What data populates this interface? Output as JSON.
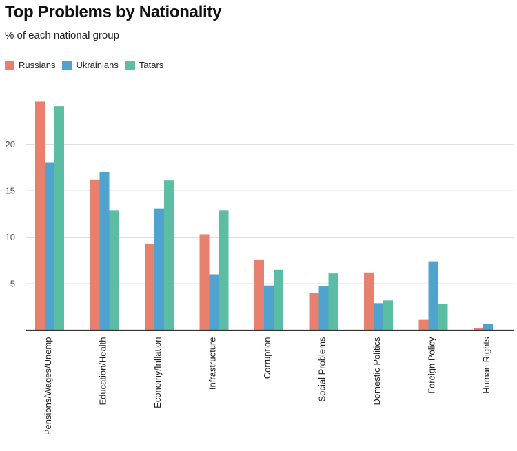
{
  "chart_data": {
    "type": "bar",
    "title": "Top Problems by Nationality",
    "subtitle": "% of each national group",
    "xlabel": "",
    "ylabel": "",
    "ylim": [
      0,
      25
    ],
    "yticks": [
      5,
      10,
      15,
      20
    ],
    "grid": true,
    "legend_position": "top-left",
    "categories": [
      "Pensions/Wages/Unemp",
      "Education/Health",
      "Economy/Inflation",
      "Infrastructure",
      "Corruption",
      "Social Problems",
      "Domestic Politics",
      "Foreign Policy",
      "Human Rights"
    ],
    "series": [
      {
        "name": "Russians",
        "color": "#E8806E",
        "values": [
          24.6,
          16.2,
          9.3,
          10.3,
          7.6,
          4.0,
          6.2,
          1.1,
          0.2
        ]
      },
      {
        "name": "Ukrainians",
        "color": "#4FA3CE",
        "values": [
          18.0,
          17.0,
          13.1,
          6.0,
          4.8,
          4.7,
          2.9,
          7.4,
          0.7
        ]
      },
      {
        "name": "Tatars",
        "color": "#5BBDA3",
        "values": [
          24.1,
          12.9,
          16.1,
          12.9,
          6.5,
          6.1,
          3.2,
          2.8,
          0.0
        ]
      }
    ]
  }
}
